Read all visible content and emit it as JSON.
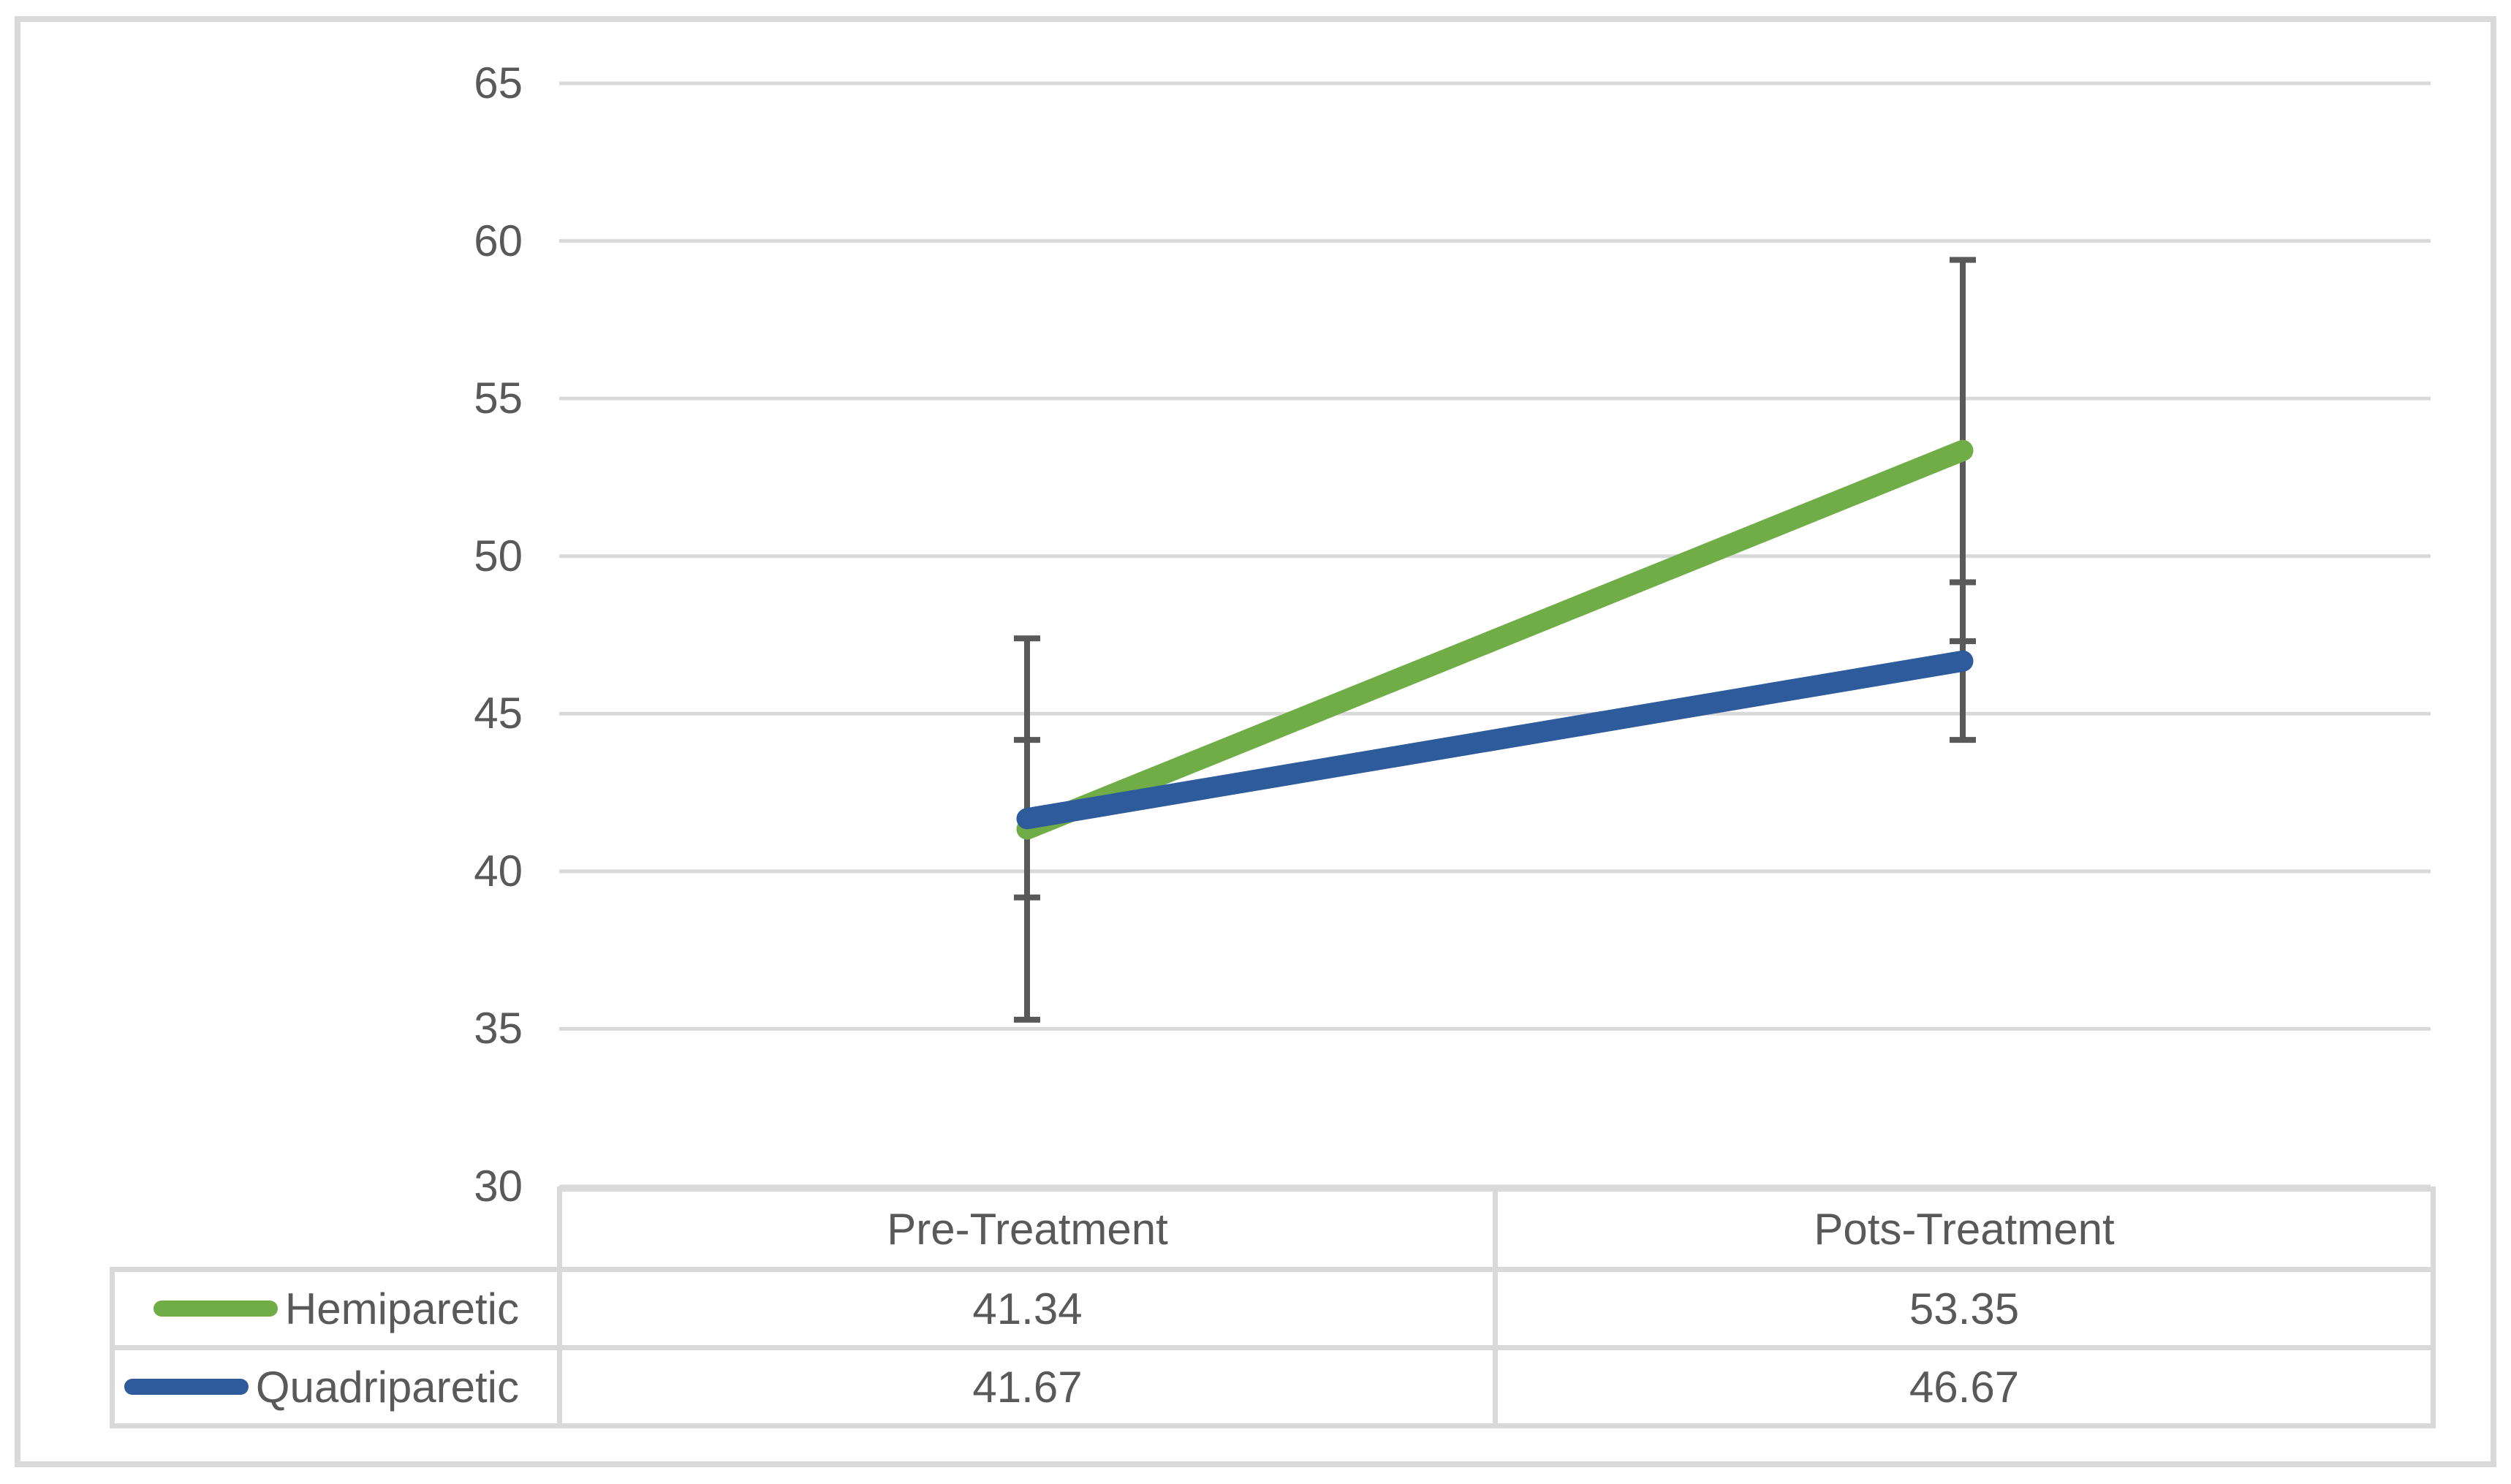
{
  "chart_data": {
    "type": "line",
    "title": "",
    "categories": [
      "Pre-Treatment",
      "Pots-Treatment"
    ],
    "series": [
      {
        "name": "Hemiparetic",
        "values": [
          41.34,
          53.35
        ],
        "color": "#70AD47",
        "error_bar": 6.05
      },
      {
        "name": "Quadriparetic",
        "values": [
          41.67,
          46.67
        ],
        "color": "#2E5B9C",
        "error_bar": 2.5
      }
    ],
    "y_axis": {
      "min": 30,
      "max": 65,
      "step": 5,
      "ticks": [
        "65",
        "60",
        "55",
        "50",
        "45",
        "40",
        "35",
        "30"
      ]
    },
    "grid": true,
    "legend_position": "data-table-left",
    "data_table_shown": true,
    "colors": {
      "gridline": "#D9D9D9",
      "table_border": "#D9D9D9",
      "chart_border": "#D9D9D9",
      "error_bar": "#595959",
      "text": "#595959"
    }
  }
}
